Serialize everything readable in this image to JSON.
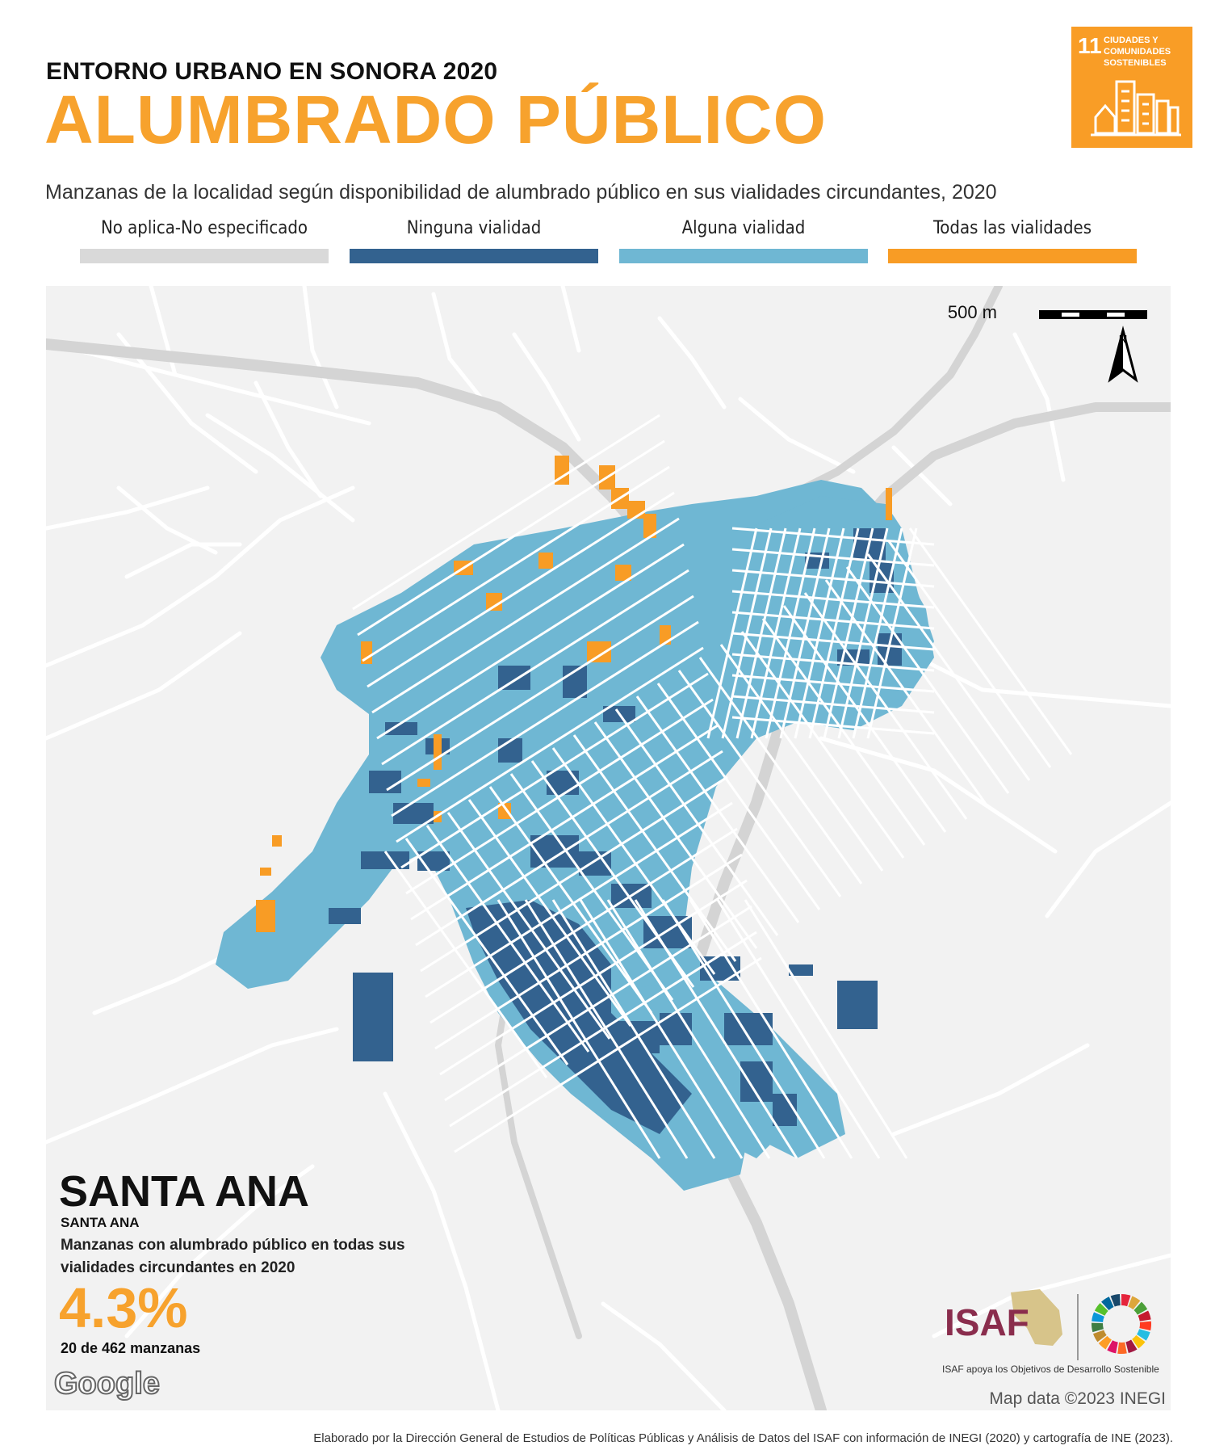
{
  "header": {
    "kicker": "ENTORNO URBANO EN SONORA 2020",
    "title": "ALUMBRADO PÚBLICO",
    "subtitle": "Manzanas de la localidad según disponibilidad de alumbrado público en sus vialidades circundantes, 2020"
  },
  "sdg_badge": {
    "number": "11",
    "text": "CIUDADES Y COMUNIDADES SOSTENIBLES",
    "color": "#f99d26",
    "icon": "city-buildings-icon"
  },
  "legend": [
    {
      "label": "No aplica-No especificado",
      "color": "#d9d9d9"
    },
    {
      "label": "Ninguna vialidad",
      "color": "#33628f"
    },
    {
      "label": "Alguna vialidad",
      "color": "#6fb7d3"
    },
    {
      "label": "Todas las vialidades",
      "color": "#f89c25"
    }
  ],
  "map": {
    "scale_label": "500 m",
    "north_label": "N",
    "credit": "Map data ©2023 INEGI",
    "google": "Google"
  },
  "place": {
    "name": "SANTA ANA",
    "sub_name": "SANTA ANA",
    "stat_description": "Manzanas con alumbrado público en todas sus vialidades circundantes en 2020",
    "stat_value": "4.3%",
    "stat_count": "20 de 462 manzanas"
  },
  "logos": {
    "isaf": "ISAF",
    "isaf_caption": "ISAF apoya los Objetivos de Desarrollo Sostenible"
  },
  "footer": "Elaborado por la Dirección General de Estudios de Políticas Públicas y Análisis de Datos del ISAF con información de INEGI (2020) y cartografía de INE (2023).",
  "colors": {
    "accent": "#f7a22d",
    "map_bg": "#f2f2f2",
    "road": "#d4d4d4"
  }
}
